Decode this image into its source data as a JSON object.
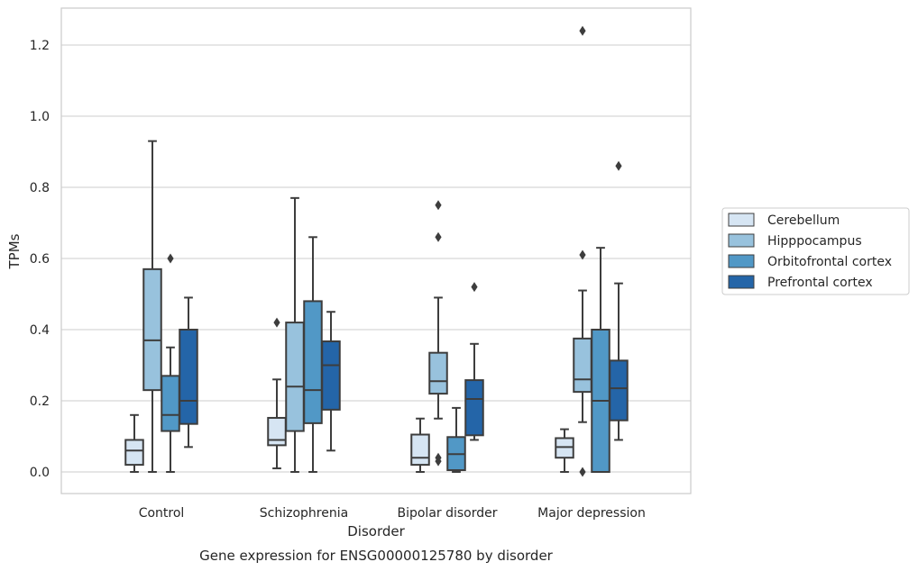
{
  "chart_data": {
    "type": "box",
    "caption": "Gene expression for ENSG00000125780 by disorder",
    "xlabel": "Disorder",
    "ylabel": "TPMs",
    "ylim": [
      -0.06,
      1.3
    ],
    "yticks": [
      "0.0",
      "0.2",
      "0.4",
      "0.6",
      "0.8",
      "1.0",
      "1.2"
    ],
    "categories": [
      "Control",
      "Schizophrenia",
      "Bipolar disorder",
      "Major depression"
    ],
    "grid": "horizontal",
    "legend_position": "right",
    "series": [
      {
        "name": "Cerebellum",
        "color": "#d6e5f3",
        "boxes": [
          {
            "whisker_low": 0.0,
            "q1": 0.02,
            "median": 0.06,
            "q3": 0.09,
            "whisker_high": 0.16,
            "outliers": []
          },
          {
            "whisker_low": 0.01,
            "q1": 0.075,
            "median": 0.09,
            "q3": 0.152,
            "whisker_high": 0.26,
            "outliers": [
              0.42
            ]
          },
          {
            "whisker_low": 0.0,
            "q1": 0.02,
            "median": 0.04,
            "q3": 0.105,
            "whisker_high": 0.15,
            "outliers": []
          },
          {
            "whisker_low": 0.0,
            "q1": 0.04,
            "median": 0.07,
            "q3": 0.095,
            "whisker_high": 0.12,
            "outliers": []
          }
        ]
      },
      {
        "name": "Hipppocampus",
        "color": "#98c2dd",
        "boxes": [
          {
            "whisker_low": 0.0,
            "q1": 0.23,
            "median": 0.37,
            "q3": 0.57,
            "whisker_high": 0.93,
            "outliers": []
          },
          {
            "whisker_low": 0.0,
            "q1": 0.115,
            "median": 0.24,
            "q3": 0.42,
            "whisker_high": 0.77,
            "outliers": []
          },
          {
            "whisker_low": 0.15,
            "q1": 0.22,
            "median": 0.255,
            "q3": 0.335,
            "whisker_high": 0.49,
            "outliers": [
              0.66,
              0.75,
              0.03,
              0.04
            ]
          },
          {
            "whisker_low": 0.14,
            "q1": 0.225,
            "median": 0.26,
            "q3": 0.375,
            "whisker_high": 0.51,
            "outliers": [
              0.61,
              1.24,
              0.0
            ]
          }
        ]
      },
      {
        "name": "Orbitofrontal cortex",
        "color": "#5198c6",
        "boxes": [
          {
            "whisker_low": 0.0,
            "q1": 0.115,
            "median": 0.16,
            "q3": 0.27,
            "whisker_high": 0.35,
            "outliers": [
              0.6
            ]
          },
          {
            "whisker_low": 0.0,
            "q1": 0.137,
            "median": 0.23,
            "q3": 0.48,
            "whisker_high": 0.66,
            "outliers": []
          },
          {
            "whisker_low": 0.0,
            "q1": 0.005,
            "median": 0.05,
            "q3": 0.098,
            "whisker_high": 0.18,
            "outliers": []
          },
          {
            "whisker_low": 0.0,
            "q1": 0.0,
            "median": 0.2,
            "q3": 0.4,
            "whisker_high": 0.63,
            "outliers": []
          }
        ]
      },
      {
        "name": "Prefrontal cortex",
        "color": "#2465a8",
        "boxes": [
          {
            "whisker_low": 0.07,
            "q1": 0.135,
            "median": 0.2,
            "q3": 0.4,
            "whisker_high": 0.49,
            "outliers": []
          },
          {
            "whisker_low": 0.06,
            "q1": 0.175,
            "median": 0.3,
            "q3": 0.367,
            "whisker_high": 0.45,
            "outliers": []
          },
          {
            "whisker_low": 0.09,
            "q1": 0.103,
            "median": 0.205,
            "q3": 0.258,
            "whisker_high": 0.36,
            "outliers": [
              0.52
            ]
          },
          {
            "whisker_low": 0.09,
            "q1": 0.145,
            "median": 0.235,
            "q3": 0.313,
            "whisker_high": 0.53,
            "outliers": [
              0.86
            ]
          }
        ]
      }
    ]
  }
}
